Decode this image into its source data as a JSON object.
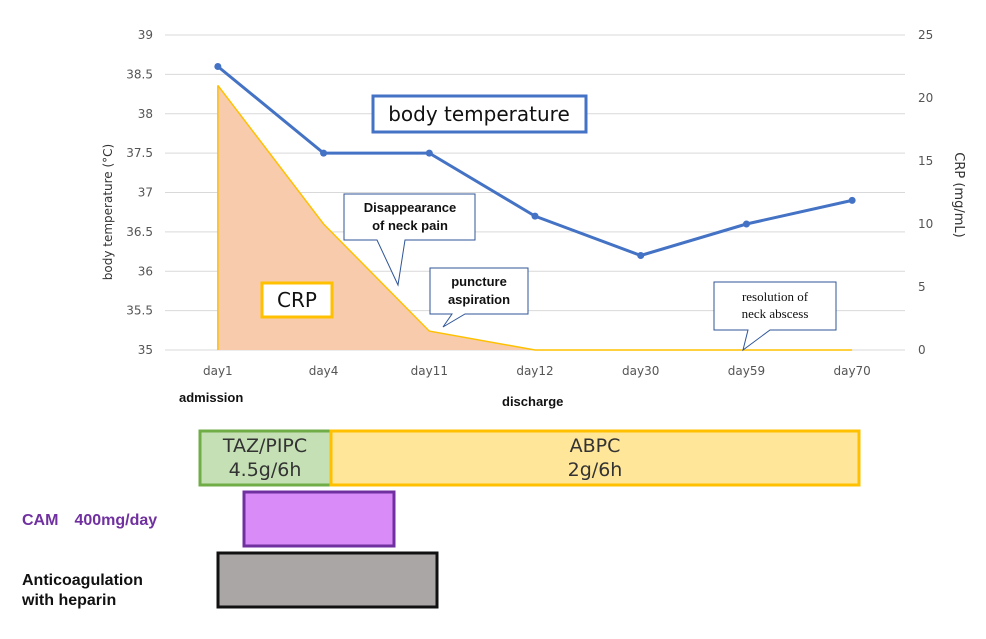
{
  "chart_data": {
    "type": "line",
    "categories": [
      "day1",
      "day4",
      "day11",
      "day12",
      "day30",
      "day59",
      "day70"
    ],
    "series": [
      {
        "name": "body temperature",
        "axis": "left",
        "color": "#4472c4",
        "values": [
          38.6,
          37.5,
          37.5,
          36.7,
          36.2,
          36.6,
          36.9
        ]
      },
      {
        "name": "CRP",
        "axis": "right",
        "color": "#f8cbad",
        "values": [
          21.0,
          10.0,
          1.5,
          0.0,
          0.0,
          0.0,
          0.0
        ]
      }
    ],
    "ylabel": "body temperature (°C)",
    "y2label": "CRP (mg/mL)",
    "ylim": [
      35,
      39
    ],
    "y2lim": [
      0,
      25
    ],
    "yticks": [
      "35",
      "35.5",
      "36",
      "36.5",
      "37",
      "37.5",
      "38",
      "38.5",
      "39"
    ],
    "y2ticks": [
      "0",
      "5",
      "10",
      "15",
      "20",
      "25"
    ],
    "grid": true,
    "annotations": [
      {
        "text_lines": [
          "Disappearance",
          "of neck pain"
        ]
      },
      {
        "text_lines": [
          "puncture",
          "aspiration"
        ]
      },
      {
        "text_lines": [
          "resolution of",
          "neck abscess"
        ]
      }
    ],
    "x_notes": {
      "admission": "admission",
      "discharge": "discharge"
    },
    "series_labels": {
      "temperature": "body temperature",
      "crp": "CRP"
    }
  },
  "treatments": [
    {
      "lines": [
        "TAZ/PIPC",
        "4.5g/6h"
      ],
      "fill": "#c5e0b4",
      "stroke": "#70ad47",
      "start_day": 0.0,
      "end_day": 1.15
    },
    {
      "lines": [
        "ABPC",
        "2g/6h"
      ],
      "fill": "#ffe699",
      "stroke": "#ffc000",
      "start_day": 1.15,
      "end_day": 6.1
    },
    {
      "label": "CAM　400mg/day",
      "fill": "#d98cf8",
      "stroke": "#7030a0",
      "label_color": "#7030a0",
      "start_day": 0.3,
      "end_day": 1.65
    },
    {
      "label_lines": [
        "Anticoagulation",
        "with heparin"
      ],
      "fill": "#aaa6a6",
      "stroke": "#111111",
      "label_color": "#111111",
      "start_day": 0.05,
      "end_day": 1.95
    }
  ]
}
